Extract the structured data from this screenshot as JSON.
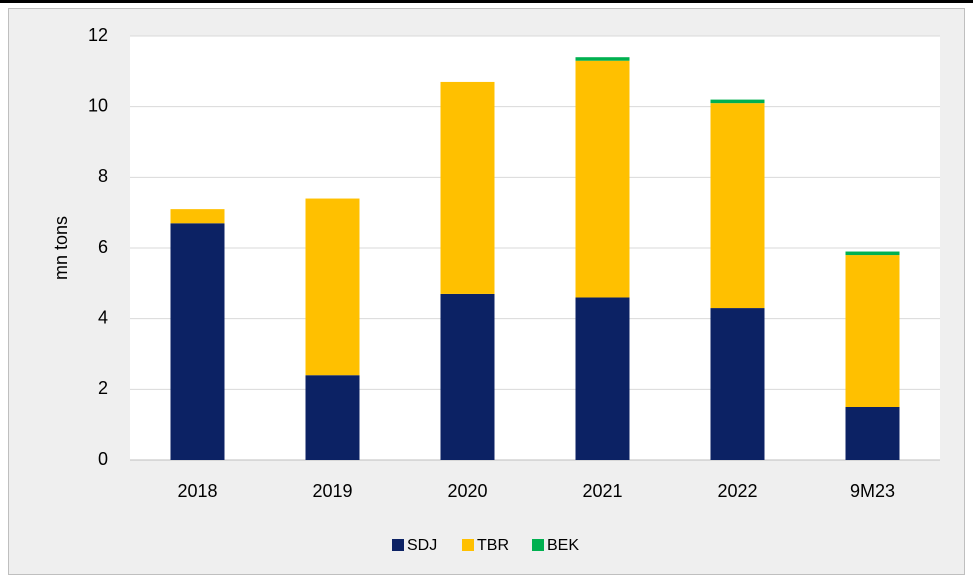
{
  "chart_data": {
    "type": "stacked_bar",
    "y_label": "mn tons",
    "categories": [
      "2018",
      "2019",
      "2020",
      "2021",
      "2022",
      "9M23"
    ],
    "series": [
      {
        "name": "SDJ",
        "color": "#0c2264",
        "values": [
          6.7,
          2.4,
          4.7,
          4.6,
          4.3,
          1.5
        ]
      },
      {
        "name": "TBR",
        "color": "#ffc000",
        "values": [
          0.4,
          5.0,
          6.0,
          6.7,
          5.8,
          4.3
        ]
      },
      {
        "name": "BEK",
        "color": "#00b050",
        "values": [
          0,
          0,
          0,
          0.1,
          0.1,
          0.1
        ]
      }
    ],
    "ylim": [
      0,
      12
    ],
    "yticks": [
      0,
      2,
      4,
      6,
      8,
      10,
      12
    ],
    "grid": true,
    "legend": "bottom"
  }
}
